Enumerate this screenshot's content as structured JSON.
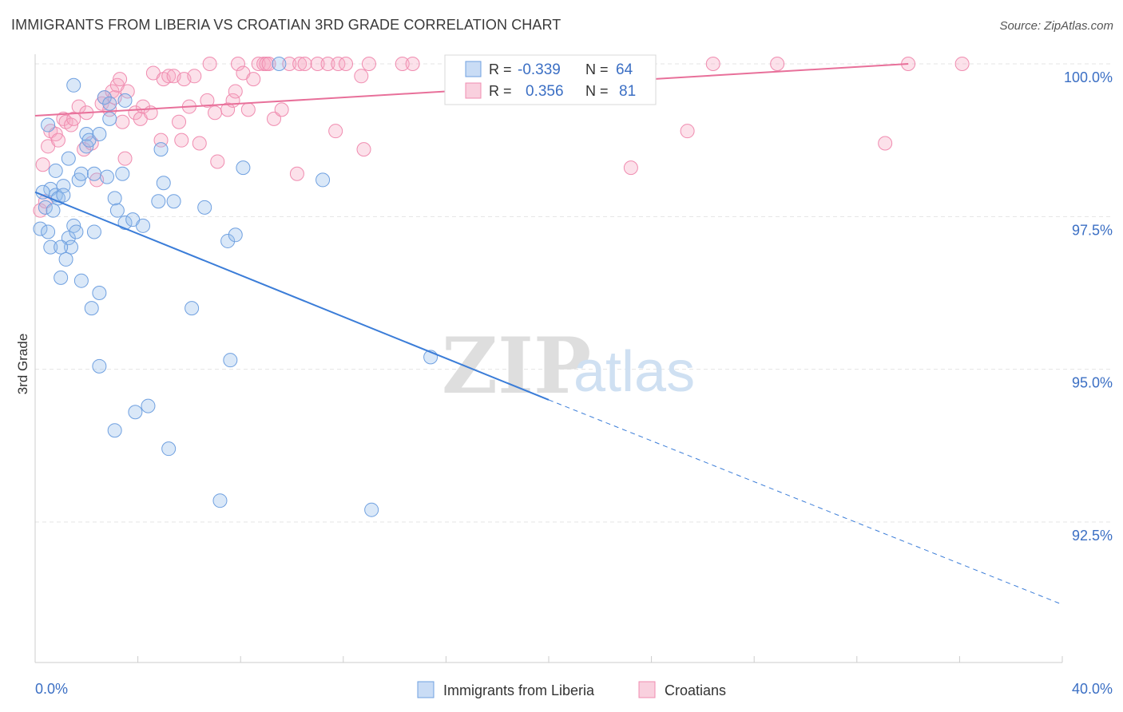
{
  "title": "IMMIGRANTS FROM LIBERIA VS CROATIAN 3RD GRADE CORRELATION CHART",
  "source": "Source: ZipAtlas.com",
  "watermark": {
    "zip": "ZIP",
    "atlas": "atlas"
  },
  "legend_box": {
    "rows": [
      {
        "r_label": "R =",
        "r_value": "-0.339",
        "n_label": "N =",
        "n_value": "64",
        "color": "#6fa0e0"
      },
      {
        "r_label": "R =",
        "r_value": "0.356",
        "n_label": "N =",
        "n_value": "81",
        "color": "#f08cb0"
      }
    ]
  },
  "bottom_legend": [
    {
      "label": "Immigrants from Liberia",
      "color": "#6fa0e0"
    },
    {
      "label": "Croatians",
      "color": "#f08cb0"
    }
  ],
  "colors": {
    "blue": "#3b7dd8",
    "pink": "#e8709a",
    "tick_text": "#3b6fc4",
    "grid": "#e6e6e6"
  },
  "chart_data": {
    "type": "scatter",
    "title": "IMMIGRANTS FROM LIBERIA VS CROATIAN 3RD GRADE CORRELATION CHART",
    "xlabel": "",
    "ylabel": "3rd Grade",
    "xlim": [
      0,
      40
    ],
    "ylim": [
      90.8,
      100.4
    ],
    "x_tick_labels": [
      "0.0%",
      "40.0%"
    ],
    "y_ticks": [
      92.5,
      95.0,
      97.5,
      100.0
    ],
    "y_tick_labels": [
      "92.5%",
      "95.0%",
      "97.5%",
      "100.0%"
    ],
    "grid": true,
    "legend_position": "top-center",
    "series": [
      {
        "name": "Immigrants from Liberia",
        "color": "#6fa0e0",
        "trend": {
          "x0": 0,
          "y0": 97.9,
          "x1": 20,
          "y1": 94.5,
          "dashed_to_x": 40,
          "dashed_to_y": 91.15
        },
        "points": [
          [
            0.2,
            97.3
          ],
          [
            0.4,
            97.65
          ],
          [
            0.5,
            97.25
          ],
          [
            0.6,
            97.95
          ],
          [
            0.6,
            97.0
          ],
          [
            0.7,
            97.6
          ],
          [
            0.8,
            97.85
          ],
          [
            0.8,
            98.25
          ],
          [
            0.9,
            97.8
          ],
          [
            1.0,
            96.5
          ],
          [
            1.1,
            98.0
          ],
          [
            1.1,
            97.85
          ],
          [
            1.2,
            96.8
          ],
          [
            1.3,
            97.15
          ],
          [
            1.3,
            98.45
          ],
          [
            1.4,
            97.0
          ],
          [
            1.5,
            97.35
          ],
          [
            1.5,
            99.65
          ],
          [
            1.6,
            97.25
          ],
          [
            1.7,
            98.1
          ],
          [
            1.8,
            98.2
          ],
          [
            1.8,
            96.45
          ],
          [
            2.0,
            98.85
          ],
          [
            2.0,
            98.65
          ],
          [
            2.1,
            98.75
          ],
          [
            2.2,
            96.0
          ],
          [
            2.3,
            98.2
          ],
          [
            2.3,
            97.25
          ],
          [
            2.5,
            98.85
          ],
          [
            2.5,
            96.25
          ],
          [
            2.5,
            95.05
          ],
          [
            2.7,
            99.45
          ],
          [
            2.8,
            98.15
          ],
          [
            2.9,
            99.35
          ],
          [
            2.9,
            99.1
          ],
          [
            3.1,
            97.8
          ],
          [
            3.1,
            94.0
          ],
          [
            3.2,
            97.6
          ],
          [
            3.4,
            98.2
          ],
          [
            3.5,
            99.4
          ],
          [
            3.5,
            97.4
          ],
          [
            3.8,
            97.45
          ],
          [
            3.9,
            94.3
          ],
          [
            4.2,
            97.35
          ],
          [
            4.4,
            94.4
          ],
          [
            4.8,
            97.75
          ],
          [
            4.9,
            98.6
          ],
          [
            5.0,
            98.05
          ],
          [
            5.2,
            93.7
          ],
          [
            5.4,
            97.75
          ],
          [
            6.1,
            96.0
          ],
          [
            6.6,
            97.65
          ],
          [
            7.2,
            92.85
          ],
          [
            7.5,
            97.1
          ],
          [
            7.6,
            95.15
          ],
          [
            7.8,
            97.2
          ],
          [
            8.1,
            98.3
          ],
          [
            9.5,
            100.0
          ],
          [
            11.2,
            98.1
          ],
          [
            13.1,
            92.7
          ],
          [
            15.4,
            95.2
          ],
          [
            0.3,
            97.9
          ],
          [
            0.5,
            99.0
          ],
          [
            1.0,
            97.0
          ]
        ]
      },
      {
        "name": "Croatians",
        "color": "#f08cb0",
        "trend": {
          "x0": 0,
          "y0": 99.15,
          "x1": 34,
          "y1": 100.0
        },
        "points": [
          [
            0.2,
            97.6
          ],
          [
            0.3,
            98.35
          ],
          [
            0.4,
            97.75
          ],
          [
            0.5,
            98.65
          ],
          [
            0.6,
            98.9
          ],
          [
            0.8,
            98.85
          ],
          [
            0.9,
            98.75
          ],
          [
            1.1,
            99.1
          ],
          [
            1.2,
            99.05
          ],
          [
            1.4,
            99.0
          ],
          [
            1.5,
            99.1
          ],
          [
            1.7,
            99.3
          ],
          [
            1.9,
            98.6
          ],
          [
            2.0,
            99.2
          ],
          [
            2.2,
            98.7
          ],
          [
            2.4,
            98.1
          ],
          [
            2.6,
            99.35
          ],
          [
            2.7,
            99.45
          ],
          [
            2.9,
            99.25
          ],
          [
            3.0,
            99.55
          ],
          [
            3.1,
            99.45
          ],
          [
            3.2,
            99.65
          ],
          [
            3.3,
            99.75
          ],
          [
            3.4,
            99.05
          ],
          [
            3.5,
            98.45
          ],
          [
            3.6,
            99.55
          ],
          [
            3.9,
            99.2
          ],
          [
            4.1,
            99.1
          ],
          [
            4.2,
            99.3
          ],
          [
            4.5,
            99.2
          ],
          [
            4.6,
            99.85
          ],
          [
            4.9,
            98.75
          ],
          [
            5.0,
            99.75
          ],
          [
            5.2,
            99.8
          ],
          [
            5.4,
            99.8
          ],
          [
            5.6,
            99.05
          ],
          [
            5.7,
            98.75
          ],
          [
            5.8,
            99.75
          ],
          [
            6.0,
            99.3
          ],
          [
            6.2,
            99.8
          ],
          [
            6.4,
            98.7
          ],
          [
            6.7,
            99.4
          ],
          [
            6.8,
            100.0
          ],
          [
            7.0,
            99.2
          ],
          [
            7.1,
            98.4
          ],
          [
            7.5,
            99.25
          ],
          [
            7.7,
            99.4
          ],
          [
            7.8,
            99.55
          ],
          [
            7.9,
            100.0
          ],
          [
            8.1,
            99.85
          ],
          [
            8.3,
            99.25
          ],
          [
            8.5,
            99.75
          ],
          [
            8.7,
            100.0
          ],
          [
            8.9,
            100.0
          ],
          [
            9.0,
            100.0
          ],
          [
            9.1,
            100.0
          ],
          [
            9.3,
            99.1
          ],
          [
            9.6,
            99.25
          ],
          [
            9.9,
            100.0
          ],
          [
            10.2,
            98.2
          ],
          [
            10.3,
            100.0
          ],
          [
            10.5,
            100.0
          ],
          [
            11.0,
            100.0
          ],
          [
            11.4,
            100.0
          ],
          [
            11.7,
            98.9
          ],
          [
            11.8,
            100.0
          ],
          [
            12.1,
            100.0
          ],
          [
            12.7,
            99.8
          ],
          [
            12.8,
            98.6
          ],
          [
            13.0,
            100.0
          ],
          [
            14.3,
            100.0
          ],
          [
            14.7,
            100.0
          ],
          [
            17.0,
            100.0
          ],
          [
            21.8,
            100.0
          ],
          [
            23.2,
            98.3
          ],
          [
            25.4,
            98.9
          ],
          [
            26.4,
            100.0
          ],
          [
            28.9,
            100.0
          ],
          [
            33.1,
            98.7
          ],
          [
            34.0,
            100.0
          ],
          [
            36.1,
            100.0
          ]
        ]
      }
    ]
  }
}
